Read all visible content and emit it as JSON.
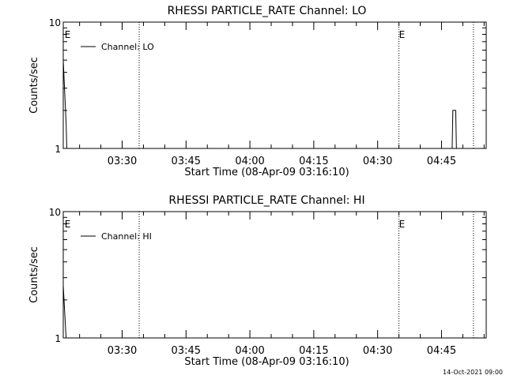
{
  "footer": {
    "timestamp": "14-Oct-2021 09:00"
  },
  "chart_data": [
    {
      "type": "line",
      "title": "RHESSI PARTICLE_RATE Channel: LO",
      "xlabel": "Start Time (08-Apr-09 03:16:10)",
      "ylabel": "Counts/sec",
      "yscale": "log",
      "ylim": [
        1,
        10
      ],
      "xlim": [
        "03:16:10",
        "04:55:30"
      ],
      "xticks": [
        "03:30",
        "03:45",
        "04:00",
        "04:15",
        "04:30",
        "04:45"
      ],
      "yticks": [
        "1",
        "10"
      ],
      "legend": {
        "position": "top-left",
        "entries": [
          "Channel: LO"
        ]
      },
      "markers": [
        {
          "time": "03:16:30",
          "label": "E",
          "dotted": false
        },
        {
          "time": "03:34:00",
          "label": "",
          "dotted": true
        },
        {
          "time": "04:35:00",
          "label": "E",
          "dotted": true
        },
        {
          "time": "04:52:30",
          "label": "",
          "dotted": true
        }
      ],
      "series": [
        {
          "name": "Channel: LO",
          "points": [
            [
              "03:16:10",
              5.0
            ],
            [
              "03:16:30",
              2.8
            ],
            [
              "03:16:50",
              1.6
            ],
            [
              "03:17:00",
              1.0
            ],
            [
              "04:47:30",
              1.0
            ],
            [
              "04:47:40",
              2.0
            ],
            [
              "04:48:20",
              2.0
            ],
            [
              "04:48:30",
              1.0
            ]
          ]
        }
      ]
    },
    {
      "type": "line",
      "title": "RHESSI PARTICLE_RATE Channel: HI",
      "xlabel": "Start Time (08-Apr-09 03:16:10)",
      "ylabel": "Counts/sec",
      "yscale": "log",
      "ylim": [
        1,
        10
      ],
      "xlim": [
        "03:16:10",
        "04:55:30"
      ],
      "xticks": [
        "03:30",
        "03:45",
        "04:00",
        "04:15",
        "04:30",
        "04:45"
      ],
      "yticks": [
        "1",
        "10"
      ],
      "legend": {
        "position": "top-left",
        "entries": [
          "Channel: HI"
        ]
      },
      "markers": [
        {
          "time": "03:16:30",
          "label": "E",
          "dotted": false
        },
        {
          "time": "03:34:00",
          "label": "",
          "dotted": true
        },
        {
          "time": "04:35:00",
          "label": "E",
          "dotted": true
        },
        {
          "time": "04:52:30",
          "label": "",
          "dotted": true
        }
      ],
      "series": [
        {
          "name": "Channel: HI",
          "points": [
            [
              "03:16:10",
              2.6
            ],
            [
              "03:16:30",
              1.6
            ],
            [
              "03:16:50",
              1.0
            ]
          ]
        }
      ]
    }
  ]
}
